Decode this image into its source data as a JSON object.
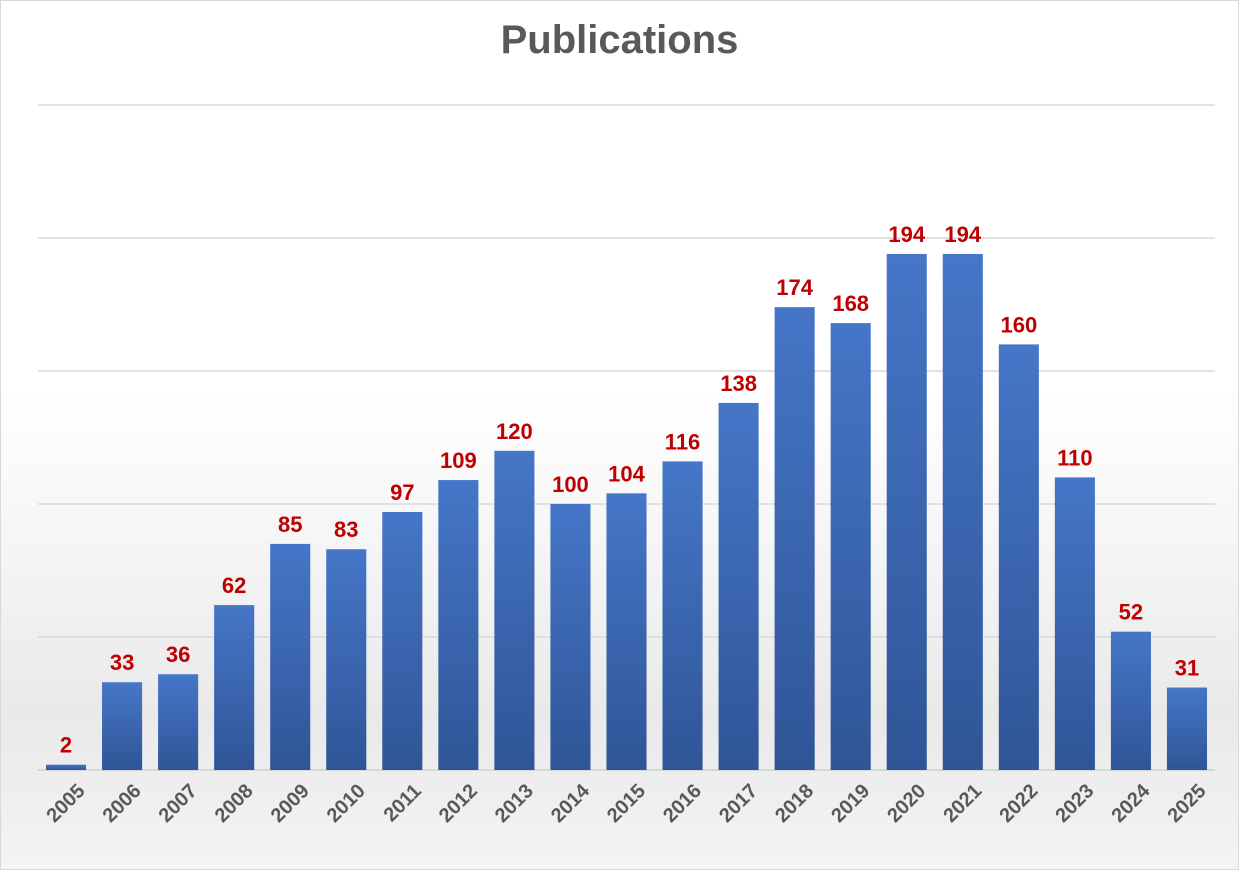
{
  "chart_data": {
    "type": "bar",
    "title": "Publications",
    "categories": [
      "2005",
      "2006",
      "2007",
      "2008",
      "2009",
      "2010",
      "2011",
      "2012",
      "2013",
      "2014",
      "2015",
      "2016",
      "2017",
      "2018",
      "2019",
      "2020",
      "2021",
      "2022",
      "2023",
      "2024",
      "2025"
    ],
    "values": [
      2,
      33,
      36,
      62,
      85,
      83,
      97,
      109,
      120,
      100,
      104,
      116,
      138,
      174,
      168,
      194,
      194,
      160,
      110,
      52,
      31
    ],
    "ylim": [
      0,
      250
    ],
    "y_gridlines": [
      0,
      50,
      100,
      150,
      200,
      250
    ],
    "y_tick_labels_shown": false,
    "x_tick_rotation_deg": -45,
    "grid": true,
    "legend": "none",
    "colors": {
      "bar": "#4472c4",
      "bar_dark": "#2f5597",
      "data_label": "#c00000",
      "title": "#595959",
      "tick_label": "#595959",
      "gridline": "#d9d9d9"
    }
  }
}
